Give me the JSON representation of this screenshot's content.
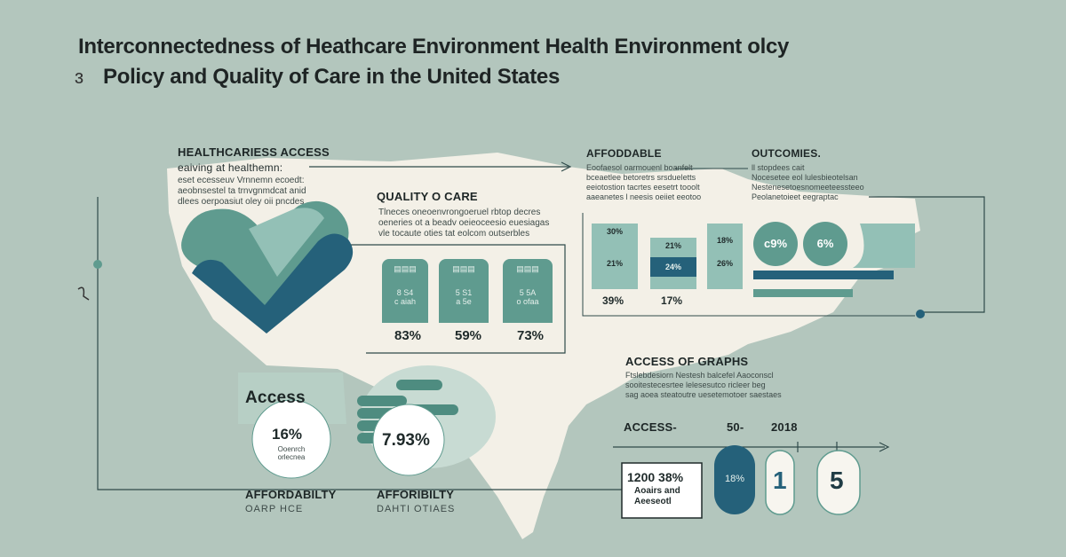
{
  "title": {
    "line1": "Interconnectedness of Heathcare Environment Health  Environment olcy",
    "line2": "Policy and Quality of Care in the United States",
    "ornament": "ɜ"
  },
  "healthcare_access": {
    "label": "HEALTHCARIESS ACCESS",
    "sublabel": "eaiving at healthemn:",
    "text": [
      "eset ecesseuv Vrnnemn ecoedt:",
      "aeobnsestel ta trnvgnmdcat anid",
      "dlees oerpoasiut oley oii pncdes"
    ]
  },
  "quality": {
    "label": "QUALITY O CARE",
    "text": [
      "Tlneces oneoenvrongoeruel rbtop decres",
      "oeneries ot a beadv oeieoceesio euesiagas",
      "vle tocaute oties tat eolcom outserbles"
    ],
    "cards": [
      {
        "top": "8 S4",
        "bottom": "c aiah",
        "pct": "83%"
      },
      {
        "top": "5 S1",
        "bottom": "a 5e",
        "pct": "59%"
      },
      {
        "top": "5 5A",
        "bottom": "o ofaa",
        "pct": "73%"
      }
    ]
  },
  "affordable": {
    "label": "AFFODDABLE",
    "text": [
      "Eoofaesol oarmouenl boanfelt",
      "bceaetlee betoretrs srsdueletts",
      "eeiotostion tacrtes eesetrt tooolt",
      "aaeanetes l neesis oeiiet eeotoo"
    ],
    "bars": [
      {
        "top": "30%",
        "mid": "21%",
        "pct": "39%"
      },
      {
        "top": "21%",
        "mid": "24%",
        "pct": "17%"
      },
      {
        "top": "18%",
        "mid": "26%",
        "pct": ""
      }
    ]
  },
  "outcomes": {
    "label": "OUTCOMIES.",
    "text": [
      "ll stopdees cait",
      "Nocesetee eol lulesbieotelsan",
      "Nestenesetoesnomeeteessteeo",
      "Peolanetoieet eegraptac"
    ],
    "circles": [
      "c9%",
      "6%"
    ]
  },
  "access_badge": {
    "label": "Access"
  },
  "access_circle": {
    "value": "16%",
    "caption": [
      "Ooenrch",
      "orlecnea"
    ]
  },
  "coins_circle": {
    "value": "7.93%"
  },
  "affordability_1": {
    "label": "AFFORDABILTY",
    "sub": "OARP HCE"
  },
  "affordability_2": {
    "label": "AFFORIBILTY",
    "sub": "DAHTI OTIAES"
  },
  "graphs": {
    "label": "ACCESS OF GRAPHS",
    "text": [
      "Ftslebdesiorn Nestesh balcefel Aaoconscl",
      "sooitestecesrtee lelesesutco ricleer beg",
      "sag aoea steatoutre uesetemotoer saestaes"
    ],
    "row": {
      "a": "ACCESS-",
      "b": "50-",
      "c": "2018"
    },
    "box": {
      "big": "1200 38%",
      "l1": "Aoairs and",
      "l2": "Aeeseotl"
    },
    "pill1": "18%",
    "pill2": "1",
    "pill3": "5"
  },
  "colors": {
    "bg": "#b3c6bd",
    "map": "#f3f0e7",
    "teal_dark": "#25617a",
    "teal": "#5f9b8f",
    "teal_light": "#93c0b6"
  }
}
